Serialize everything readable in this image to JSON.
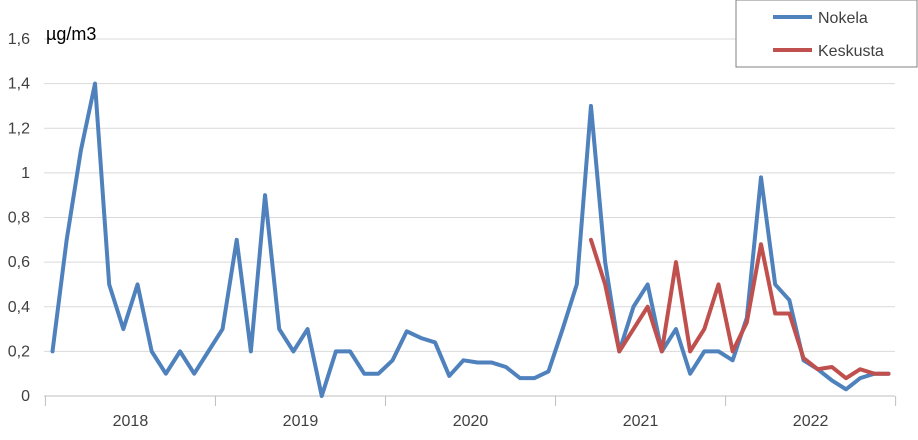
{
  "chart_data": {
    "type": "line",
    "ylabel": "µg/m3",
    "ylim": [
      0,
      1.6
    ],
    "y_ticks": [
      0,
      0.2,
      0.4,
      0.6,
      0.8,
      1,
      1.2,
      1.4,
      1.6
    ],
    "y_tick_labels": [
      "0",
      "0,2",
      "0,4",
      "0,6",
      "0,8",
      "1",
      "1,2",
      "1,4",
      "1,6"
    ],
    "x_year_labels": [
      "2018",
      "2019",
      "2020",
      "2021",
      "2022"
    ],
    "months_per_year": 12,
    "first_month_index": 0,
    "grid": "horizontal",
    "legend_position": "top-right",
    "series": [
      {
        "name": "Nokela",
        "color": "#4F81BD",
        "start_month": 0,
        "values": [
          0.2,
          0.7,
          1.1,
          1.4,
          0.5,
          0.3,
          0.5,
          0.2,
          0.1,
          0.2,
          0.1,
          0.2,
          0.3,
          0.7,
          0.2,
          0.9,
          0.3,
          0.2,
          0.3,
          0.0,
          0.2,
          0.2,
          0.1,
          0.1,
          0.16,
          0.29,
          0.26,
          0.24,
          0.09,
          0.16,
          0.15,
          0.15,
          0.13,
          0.08,
          0.08,
          0.11,
          0.3,
          0.5,
          1.3,
          0.6,
          0.2,
          0.4,
          0.5,
          0.2,
          0.3,
          0.1,
          0.2,
          0.2,
          0.16,
          0.35,
          0.98,
          0.5,
          0.43,
          0.16,
          0.12,
          0.07,
          0.03,
          0.08,
          0.1,
          0.1
        ]
      },
      {
        "name": "Keskusta",
        "color": "#C0504D",
        "start_month": 38,
        "values": [
          0.7,
          0.5,
          0.2,
          0.3,
          0.4,
          0.2,
          0.6,
          0.2,
          0.3,
          0.5,
          0.2,
          0.33,
          0.68,
          0.37,
          0.37,
          0.17,
          0.12,
          0.13,
          0.08,
          0.12,
          0.1,
          0.1
        ]
      }
    ]
  }
}
